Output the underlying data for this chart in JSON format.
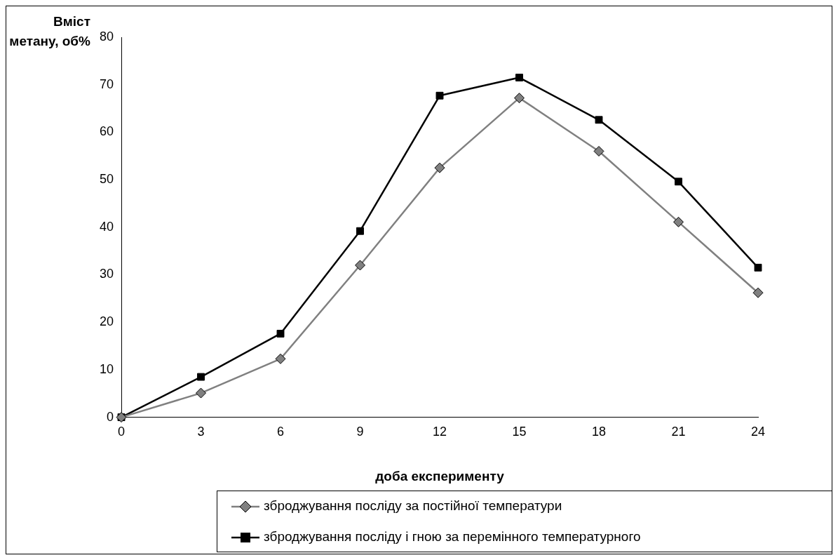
{
  "chart_data": {
    "type": "line",
    "xlabel": "доба експерименту",
    "ylabel": "Вміст метану, об%",
    "x": [
      0,
      3,
      6,
      9,
      12,
      15,
      18,
      21,
      24
    ],
    "xlim": [
      0,
      24
    ],
    "xticks": [
      0,
      3,
      6,
      9,
      12,
      15,
      18,
      21,
      24
    ],
    "ylim": [
      0,
      80
    ],
    "yticks": [
      0,
      10,
      20,
      30,
      40,
      50,
      60,
      70,
      80
    ],
    "grid": false,
    "legend": "bottom",
    "line_style": "solid",
    "series": [
      {
        "name": "зброджування посліду за постійної температури",
        "color": "#808080",
        "marker": "diamond",
        "values": [
          0,
          5.1,
          12.3,
          32,
          52.5,
          67.2,
          56,
          41.1,
          26.2
        ]
      },
      {
        "name": "зброджування посліду і гною за перемінного температурного",
        "color": "#000000",
        "marker": "square",
        "values": [
          0,
          8.5,
          17.6,
          39.2,
          67.7,
          71.5,
          62.6,
          49.6,
          31.5
        ]
      }
    ]
  }
}
